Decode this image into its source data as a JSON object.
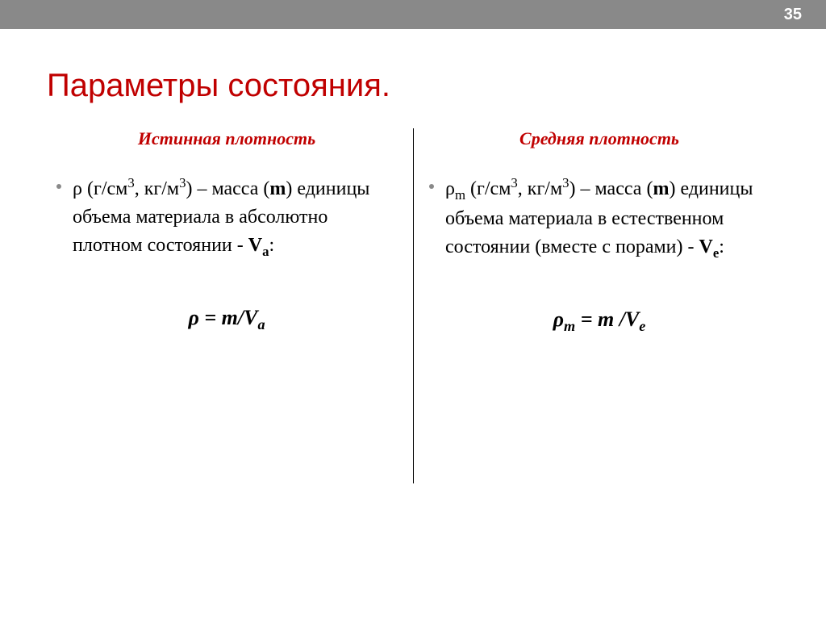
{
  "topbar": {
    "page_number": "35"
  },
  "title": "Параметры состояния.",
  "columns": {
    "left": {
      "heading": "Истинная плотность",
      "text_parts": {
        "p1": "ρ (г/см",
        "sup1": "3",
        "p2": ", кг/м",
        "sup2": "3",
        "p3": ") – масса  (",
        "bold1": "m",
        "p4": ") единицы объема материала в абсолютно плотном состоянии - ",
        "bold2": "V",
        "sub1": "а",
        "p5": ":"
      },
      "formula": {
        "f1": "ρ = m/V",
        "fsub": "a"
      }
    },
    "right": {
      "heading": "Средняя  плотность",
      "text_parts": {
        "p1": "ρ",
        "sub0": "m",
        "p1b": " (г/см",
        "sup1": "3",
        "p2": ", кг/м",
        "sup2": "3",
        "p3": ") – масса (",
        "bold1": "m",
        "p4": ") единицы объема материала в естественном состоянии (вместе с порами)  - ",
        "bold2": "V",
        "sub1": "е",
        "p5": ":"
      },
      "formula": {
        "f1": "ρ",
        "fsub1": "m",
        "f2": " = m /V",
        "fsub2": "e"
      }
    }
  },
  "colors": {
    "topbar_bg": "#898989",
    "title_color": "#c00000",
    "text_color": "#000000",
    "bullet_color": "#898989"
  }
}
